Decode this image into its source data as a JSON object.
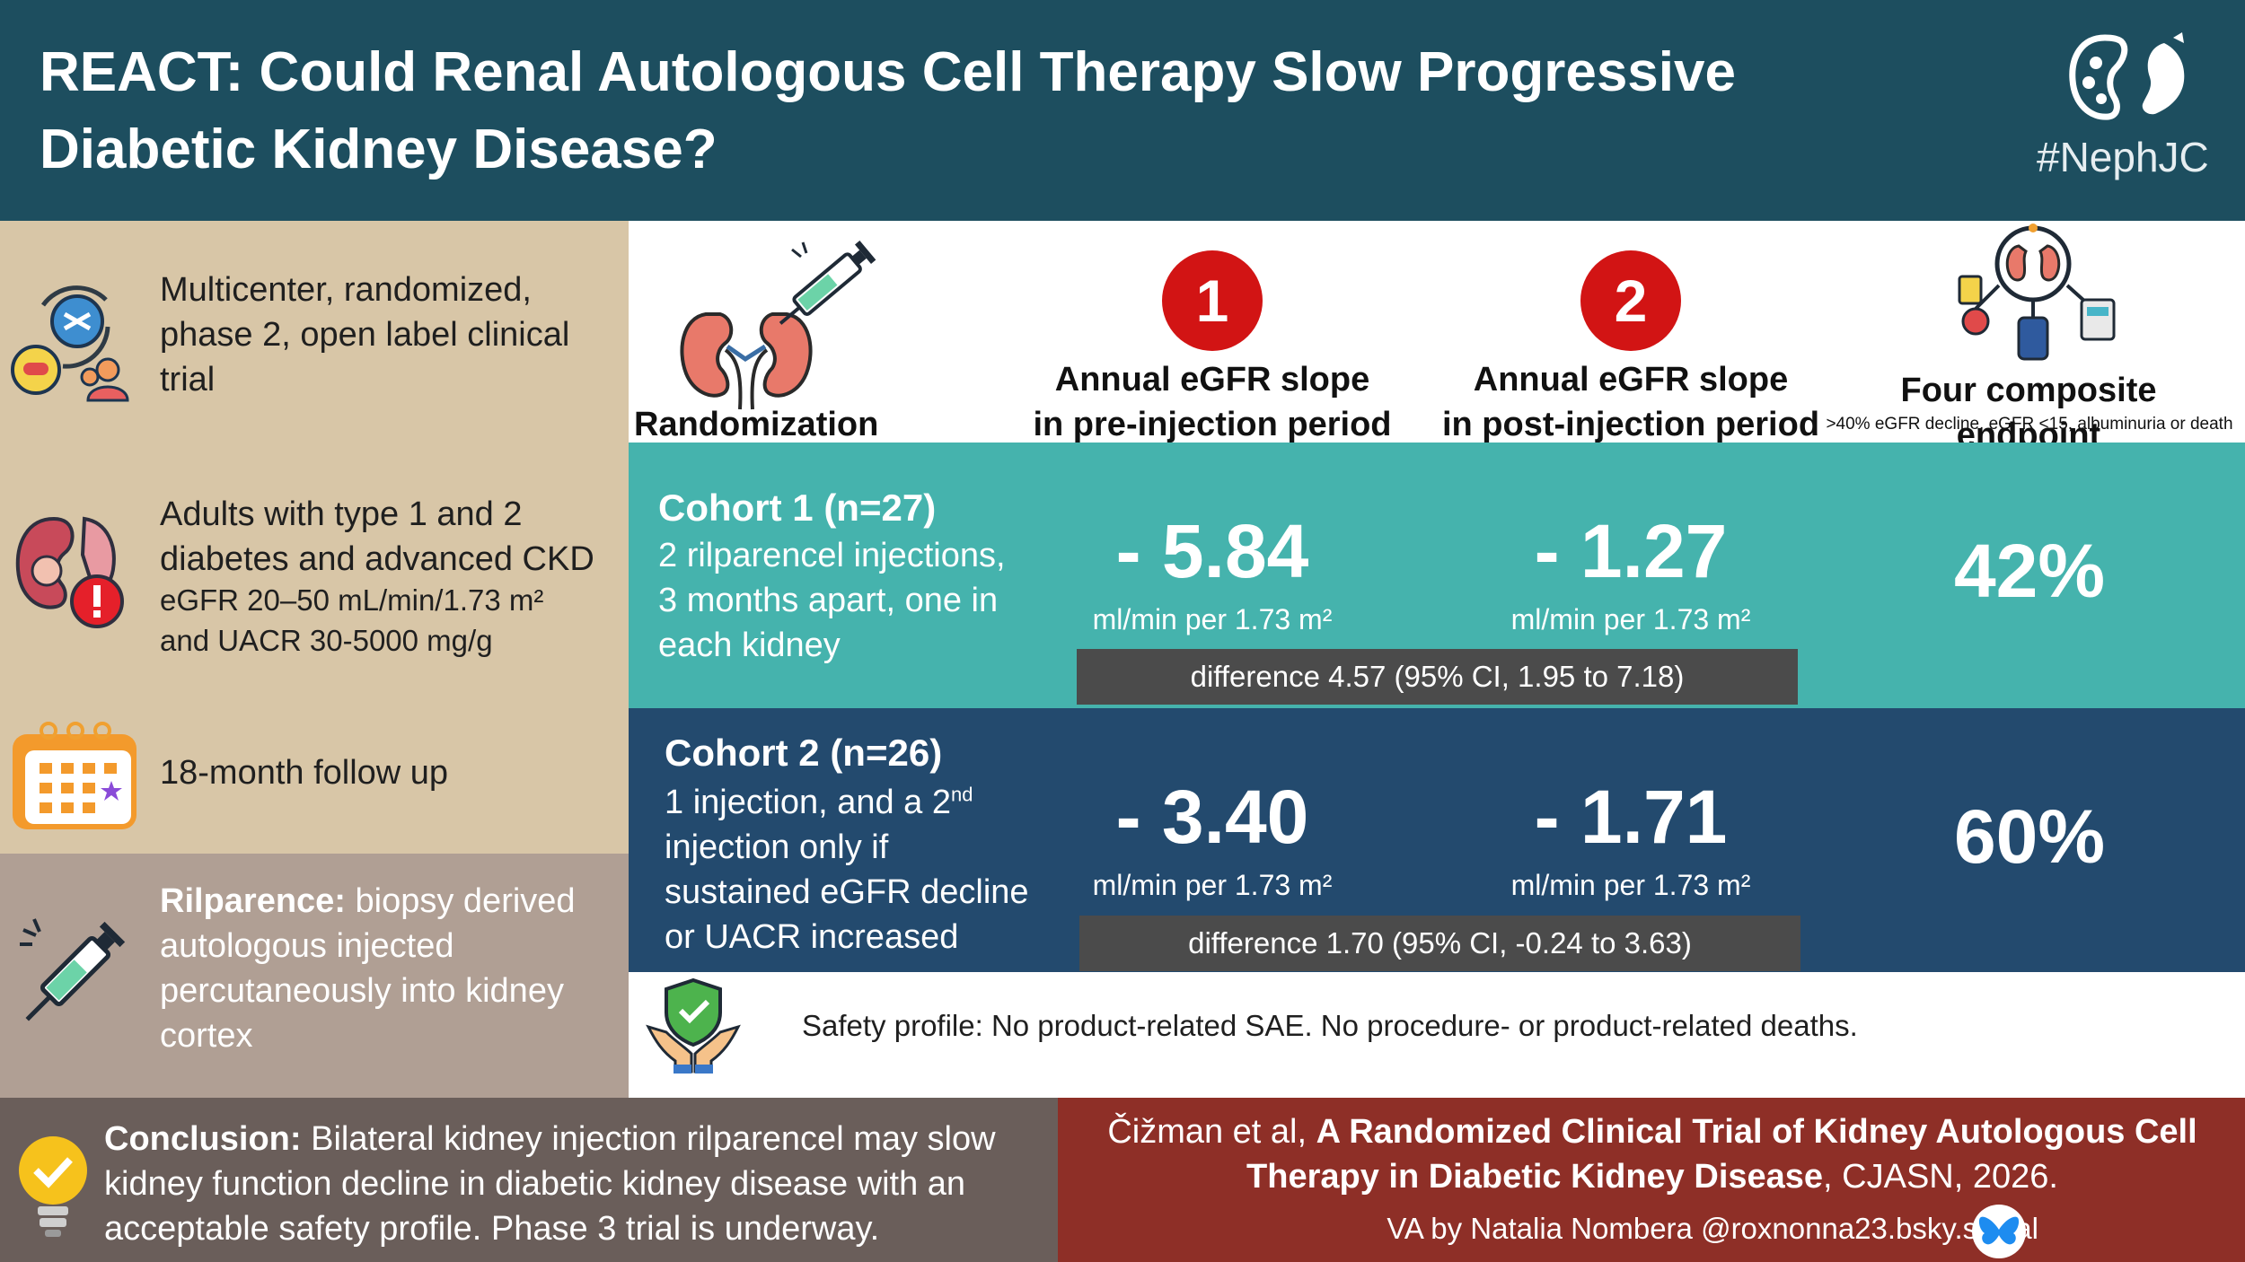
{
  "header": {
    "title": "REACT: Could Renal Autologous Cell Therapy Slow Progressive Diabetic Kidney Disease?",
    "hashtag": "#NephJC"
  },
  "sidebar": {
    "design": "Multicenter, randomized, phase 2, open label clinical trial",
    "population_line": "Adults with type 1 and 2 diabetes and advanced CKD",
    "population_criteria_1": "eGFR 20–50 mL/min/1.73 m²",
    "population_criteria_2": "and UACR 30-5000 mg/g",
    "followup": "18-month follow up",
    "drug_name": "Rilparence:",
    "drug_desc": " biopsy derived autologous injected percutaneously into kidney cortex"
  },
  "table_header": {
    "randomization": "Randomization",
    "col1_badge": "1",
    "col1_line1": "Annual eGFR slope",
    "col1_line2": "in pre-injection period",
    "col2_badge": "2",
    "col2_line1": "Annual eGFR slope",
    "col2_line2": "in post-injection period",
    "col3_title": "Four composite endpoint",
    "col3_sub": ">40% eGFR decline, eGFR <15, albuminuria or death"
  },
  "cohorts": [
    {
      "title": "Cohort 1 (n=27)",
      "desc_1": "2 rilparencel injections,",
      "desc_2": "3 months apart, one in",
      "desc_3": "each kidney",
      "pre_value": "- 5.84",
      "pre_unit": "ml/min per 1.73 m²",
      "post_value": "- 1.27",
      "post_unit": "ml/min per 1.73 m²",
      "difference": "difference 4.57 (95% CI, 1.95 to 7.18)",
      "composite": "42%"
    },
    {
      "title": "Cohort 2 (n=26)",
      "desc_1a": "1 injection, and a 2",
      "desc_1_sup": "nd",
      "desc_2": "injection only if",
      "desc_3": "sustained eGFR decline",
      "desc_4": "or UACR increased",
      "pre_value": "- 3.40",
      "pre_unit": "ml/min per 1.73 m²",
      "post_value": "- 1.71",
      "post_unit": "ml/min per 1.73 m²",
      "difference": "difference 1.70 (95% CI, -0.24 to 3.63)",
      "composite": "60%"
    }
  ],
  "safety": {
    "text": "Safety profile: No product-related SAE. No procedure- or product-related deaths."
  },
  "conclusion": {
    "label": "Conclusion:",
    "text": " Bilateral kidney injection rilparencel may slow kidney function decline in diabetic kidney disease with an acceptable safety profile. Phase 3 trial is underway."
  },
  "citation": {
    "authors": "Čižman et al, ",
    "title": "A Randomized Clinical Trial of Kidney Autologous Cell Therapy in Diabetic Kidney Disease",
    "journal": ", CJASN, 2026.",
    "va": "VA by Natalia Nombera @roxnonna23.bsky.social"
  },
  "colors": {
    "header": "#1d4e5f",
    "sidebar": "#d8c6a7",
    "cohort1": "#45b3ad",
    "cohort2": "#234a6e",
    "badge": "#d21414",
    "citation": "#8e2f27"
  }
}
